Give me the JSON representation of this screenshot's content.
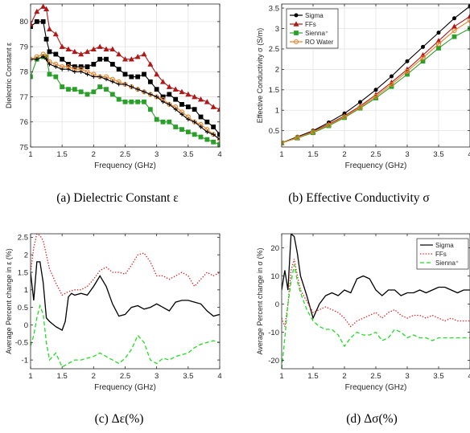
{
  "captions": [
    "(a) Dielectric Constant ε",
    "(b) Effective Conductivity σ",
    "(c) Δε(%)",
    "(d) Δσ(%)"
  ],
  "chart_data": [
    {
      "type": "line",
      "title": "",
      "xlabel": "Frequency (GHz)",
      "ylabel": "Dielectric Constant ε",
      "xlim": [
        1,
        4
      ],
      "ylim": [
        75,
        80.7
      ],
      "xticks": [
        1,
        1.5,
        2,
        2.5,
        3,
        3.5,
        4
      ],
      "xtick_labels": [
        "1",
        "1.5",
        "2",
        "2.5",
        "3",
        "3.5",
        "4"
      ],
      "yticks": [
        75,
        76,
        77,
        78,
        79,
        80
      ],
      "ytick_labels": [
        "75",
        "76",
        "77",
        "78",
        "79",
        "80"
      ],
      "grid": true,
      "legend": false,
      "series": [
        {
          "color": "#000000",
          "marker": "square",
          "x": [
            1.0,
            1.1,
            1.2,
            1.25,
            1.3,
            1.4,
            1.5,
            1.6,
            1.7,
            1.8,
            1.9,
            2.0,
            2.1,
            2.2,
            2.3,
            2.4,
            2.5,
            2.6,
            2.7,
            2.8,
            2.9,
            3.0,
            3.1,
            3.2,
            3.3,
            3.4,
            3.5,
            3.6,
            3.7,
            3.8,
            3.9,
            4.0
          ],
          "y": [
            79.8,
            80.0,
            80.0,
            79.3,
            78.8,
            78.7,
            78.5,
            78.3,
            78.2,
            78.2,
            78.2,
            78.3,
            78.5,
            78.5,
            78.3,
            78.1,
            77.9,
            77.8,
            77.8,
            77.9,
            77.6,
            77.3,
            77.0,
            77.1,
            76.9,
            76.7,
            76.6,
            76.5,
            76.2,
            76.0,
            75.8,
            75.5
          ]
        },
        {
          "color": "#b01818",
          "marker": "triangle",
          "x": [
            1.0,
            1.1,
            1.2,
            1.25,
            1.3,
            1.4,
            1.5,
            1.6,
            1.7,
            1.8,
            1.9,
            2.0,
            2.1,
            2.2,
            2.3,
            2.4,
            2.5,
            2.6,
            2.7,
            2.8,
            2.9,
            3.0,
            3.1,
            3.2,
            3.3,
            3.4,
            3.5,
            3.6,
            3.7,
            3.8,
            3.9,
            4.0
          ],
          "y": [
            79.9,
            80.4,
            80.6,
            80.5,
            79.7,
            79.5,
            79.0,
            78.9,
            78.8,
            78.7,
            78.8,
            78.9,
            79.0,
            78.9,
            78.9,
            78.7,
            78.5,
            78.5,
            78.6,
            78.7,
            78.3,
            77.9,
            77.6,
            77.4,
            77.3,
            77.2,
            77.1,
            77.0,
            76.9,
            76.8,
            76.6,
            76.5
          ]
        },
        {
          "color": "#2aa02a",
          "marker": "square",
          "x": [
            1.0,
            1.1,
            1.2,
            1.25,
            1.3,
            1.4,
            1.5,
            1.6,
            1.7,
            1.8,
            1.9,
            2.0,
            2.1,
            2.2,
            2.3,
            2.4,
            2.5,
            2.6,
            2.7,
            2.8,
            2.9,
            3.0,
            3.1,
            3.2,
            3.3,
            3.4,
            3.5,
            3.6,
            3.7,
            3.8,
            3.9,
            4.0
          ],
          "y": [
            77.8,
            78.5,
            78.6,
            78.6,
            77.9,
            77.8,
            77.4,
            77.3,
            77.3,
            77.2,
            77.1,
            77.2,
            77.4,
            77.3,
            77.1,
            76.9,
            76.8,
            76.8,
            76.8,
            76.8,
            76.5,
            76.1,
            76.0,
            76.0,
            75.8,
            75.7,
            75.6,
            75.5,
            75.4,
            75.3,
            75.2,
            75.1
          ]
        },
        {
          "color": "#e8832a",
          "marker": "ring",
          "x": [
            1.0,
            1.1,
            1.2,
            1.25,
            1.3,
            1.4,
            1.5,
            1.6,
            1.7,
            1.8,
            1.9,
            2.0,
            2.1,
            2.2,
            2.3,
            2.4,
            2.5,
            2.6,
            2.7,
            2.8,
            2.9,
            3.0,
            3.1,
            3.2,
            3.3,
            3.4,
            3.5,
            3.6,
            3.7,
            3.8,
            3.9,
            4.0
          ],
          "y": [
            78.5,
            78.6,
            78.7,
            78.6,
            78.4,
            78.3,
            78.2,
            78.2,
            78.1,
            78.1,
            78.0,
            77.9,
            77.8,
            77.8,
            77.7,
            77.6,
            77.5,
            77.4,
            77.3,
            77.2,
            77.1,
            77.0,
            76.9,
            76.7,
            76.6,
            76.4,
            76.2,
            76.0,
            75.9,
            75.7,
            75.5,
            75.3
          ]
        },
        {
          "color": "#000000",
          "marker": "plus",
          "x": [
            1.0,
            1.1,
            1.2,
            1.25,
            1.3,
            1.4,
            1.5,
            1.6,
            1.7,
            1.8,
            1.9,
            2.0,
            2.1,
            2.2,
            2.3,
            2.4,
            2.5,
            2.6,
            2.7,
            2.8,
            2.9,
            3.0,
            3.1,
            3.2,
            3.3,
            3.4,
            3.5,
            3.6,
            3.7,
            3.8,
            3.9,
            4.0
          ],
          "y": [
            78.5,
            78.5,
            78.6,
            78.5,
            78.3,
            78.2,
            78.1,
            78.1,
            78.0,
            78.0,
            77.9,
            77.8,
            77.8,
            77.7,
            77.6,
            77.5,
            77.5,
            77.4,
            77.3,
            77.2,
            77.1,
            77.0,
            76.8,
            76.7,
            76.5,
            76.3,
            76.1,
            76.0,
            75.8,
            75.6,
            75.5,
            75.3
          ]
        }
      ]
    },
    {
      "type": "line",
      "title": "",
      "xlabel": "Frequency (GHz)",
      "ylabel": "Effective Conductivity σ (S/m)",
      "xlim": [
        1,
        4
      ],
      "ylim": [
        0.1,
        3.6
      ],
      "xticks": [
        1,
        1.5,
        2,
        2.5,
        3,
        3.5,
        4
      ],
      "xtick_labels": [
        "1",
        "1.5",
        "2",
        "2.5",
        "3",
        "3.5",
        "4"
      ],
      "yticks": [
        0.5,
        1,
        1.5,
        2,
        2.5,
        3,
        3.5
      ],
      "ytick_labels": [
        "0.5",
        "1",
        "1.5",
        "2",
        "2.5",
        "3",
        "3.5"
      ],
      "grid": true,
      "legend": "top-left",
      "series": [
        {
          "name": "Sigma",
          "color": "#000000",
          "marker": "dot",
          "x": [
            1.0,
            1.25,
            1.5,
            1.75,
            2.0,
            2.25,
            2.5,
            2.75,
            3.0,
            3.25,
            3.5,
            3.75,
            4.0
          ],
          "y": [
            0.2,
            0.35,
            0.5,
            0.7,
            0.92,
            1.2,
            1.5,
            1.83,
            2.2,
            2.55,
            2.9,
            3.25,
            3.55
          ]
        },
        {
          "name": "FFs",
          "color": "#b01818",
          "marker": "triangle",
          "x": [
            1.0,
            1.25,
            1.5,
            1.75,
            2.0,
            2.25,
            2.5,
            2.75,
            3.0,
            3.25,
            3.5,
            3.75,
            4.0
          ],
          "y": [
            0.2,
            0.33,
            0.48,
            0.66,
            0.86,
            1.1,
            1.38,
            1.68,
            2.0,
            2.35,
            2.7,
            3.05,
            3.3
          ]
        },
        {
          "name": "Sienna⁺",
          "color": "#2aa02a",
          "marker": "square",
          "x": [
            1.0,
            1.25,
            1.5,
            1.75,
            2.0,
            2.25,
            2.5,
            2.75,
            3.0,
            3.25,
            3.5,
            3.75,
            4.0
          ],
          "y": [
            0.2,
            0.32,
            0.45,
            0.62,
            0.82,
            1.05,
            1.3,
            1.58,
            1.88,
            2.2,
            2.52,
            2.8,
            3.0
          ]
        },
        {
          "name": "RO Water",
          "color": "#e8832a",
          "marker": "ring",
          "x": [
            1.0,
            1.25,
            1.5,
            1.75,
            2.0,
            2.25,
            2.5,
            2.75,
            3.0,
            3.25,
            3.5,
            3.75,
            4.0
          ],
          "y": [
            0.2,
            0.33,
            0.47,
            0.64,
            0.84,
            1.07,
            1.34,
            1.63,
            1.95,
            2.28,
            2.62,
            2.95,
            3.2
          ]
        }
      ]
    },
    {
      "type": "line",
      "title": "",
      "xlabel": "Frequency (GHz)",
      "ylabel": "Average Percent change in ε (%)",
      "xlim": [
        1,
        4
      ],
      "ylim": [
        -1.25,
        2.6
      ],
      "xticks": [
        1,
        1.5,
        2,
        2.5,
        3,
        3.5,
        4
      ],
      "xtick_labels": [
        "1",
        "1.5",
        "2",
        "2.5",
        "3",
        "3.5",
        "4"
      ],
      "yticks": [
        -1,
        -0.5,
        0,
        0.5,
        1,
        1.5,
        2,
        2.5
      ],
      "ytick_labels": [
        "-1",
        "-0.5",
        "0",
        "0.5",
        "1",
        "1.5",
        "2",
        "2.5"
      ],
      "grid": false,
      "legend": false,
      "series": [
        {
          "color": "#000000",
          "style": "solid",
          "x": [
            1.0,
            1.05,
            1.1,
            1.15,
            1.2,
            1.25,
            1.3,
            1.4,
            1.5,
            1.55,
            1.6,
            1.65,
            1.7,
            1.8,
            1.9,
            2.0,
            2.1,
            2.2,
            2.3,
            2.4,
            2.5,
            2.6,
            2.7,
            2.8,
            2.9,
            3.0,
            3.1,
            3.2,
            3.3,
            3.4,
            3.5,
            3.6,
            3.7,
            3.8,
            3.9,
            4.0
          ],
          "y": [
            1.5,
            0.7,
            1.8,
            1.8,
            1.2,
            0.2,
            0.1,
            -0.05,
            -0.15,
            0.1,
            0.8,
            0.9,
            0.85,
            0.9,
            0.85,
            1.1,
            1.4,
            1.1,
            0.6,
            0.25,
            0.3,
            0.5,
            0.55,
            0.45,
            0.5,
            0.6,
            0.5,
            0.4,
            0.65,
            0.7,
            0.7,
            0.65,
            0.6,
            0.4,
            0.25,
            0.3
          ]
        },
        {
          "color": "#e02020",
          "style": "dotted",
          "x": [
            1.0,
            1.05,
            1.1,
            1.15,
            1.2,
            1.25,
            1.3,
            1.4,
            1.5,
            1.6,
            1.7,
            1.8,
            1.9,
            2.0,
            2.1,
            2.2,
            2.3,
            2.4,
            2.5,
            2.6,
            2.7,
            2.8,
            2.9,
            3.0,
            3.1,
            3.2,
            3.3,
            3.4,
            3.5,
            3.6,
            3.7,
            3.8,
            3.9,
            4.0
          ],
          "y": [
            1.5,
            2.2,
            2.6,
            2.55,
            2.4,
            2.0,
            1.6,
            1.2,
            0.85,
            0.95,
            1.0,
            1.0,
            1.1,
            1.3,
            1.55,
            1.65,
            1.5,
            1.5,
            1.45,
            1.7,
            2.0,
            2.05,
            1.8,
            1.4,
            1.4,
            1.3,
            1.4,
            1.5,
            1.4,
            1.1,
            1.3,
            1.5,
            1.4,
            1.5
          ]
        },
        {
          "color": "#22dd22",
          "style": "dashed",
          "x": [
            1.0,
            1.05,
            1.1,
            1.15,
            1.2,
            1.25,
            1.3,
            1.4,
            1.5,
            1.6,
            1.7,
            1.8,
            1.9,
            2.0,
            2.1,
            2.2,
            2.3,
            2.4,
            2.5,
            2.6,
            2.7,
            2.8,
            2.9,
            3.0,
            3.1,
            3.2,
            3.3,
            3.4,
            3.5,
            3.6,
            3.7,
            3.8,
            3.9,
            4.0
          ],
          "y": [
            -0.6,
            -0.3,
            0.2,
            0.55,
            0.3,
            -0.5,
            -1.0,
            -0.8,
            -1.2,
            -1.1,
            -1.0,
            -1.0,
            -0.95,
            -0.9,
            -0.8,
            -0.9,
            -1.0,
            -1.1,
            -0.95,
            -0.7,
            -0.3,
            -0.5,
            -1.0,
            -1.1,
            -0.95,
            -1.0,
            -0.9,
            -0.85,
            -0.8,
            -0.65,
            -0.55,
            -0.5,
            -0.45,
            -0.5
          ]
        }
      ]
    },
    {
      "type": "line",
      "title": "",
      "xlabel": "Frequency (GHz)",
      "ylabel": "Average Percent change in σ (%)",
      "xlim": [
        1,
        4
      ],
      "ylim": [
        -23,
        25
      ],
      "xticks": [
        1,
        1.5,
        2,
        2.5,
        3,
        3.5,
        4
      ],
      "xtick_labels": [
        "1",
        "1.5",
        "2",
        "2.5",
        "3",
        "3.5",
        "4"
      ],
      "yticks": [
        -20,
        -10,
        0,
        10,
        20
      ],
      "ytick_labels": [
        "-20",
        "-10",
        "0",
        "10",
        "20"
      ],
      "grid": false,
      "legend": "top-right",
      "series": [
        {
          "name": "Sigma",
          "color": "#000000",
          "style": "solid",
          "x": [
            1.0,
            1.05,
            1.1,
            1.15,
            1.2,
            1.25,
            1.3,
            1.4,
            1.5,
            1.6,
            1.7,
            1.8,
            1.9,
            2.0,
            2.1,
            2.2,
            2.3,
            2.4,
            2.5,
            2.6,
            2.7,
            2.8,
            2.9,
            3.0,
            3.1,
            3.2,
            3.3,
            3.4,
            3.5,
            3.6,
            3.7,
            3.8,
            3.9,
            4.0
          ],
          "y": [
            5,
            12,
            5,
            25,
            24,
            18,
            10,
            3,
            -5,
            0,
            3,
            4,
            3,
            5,
            4,
            9,
            10,
            9,
            5,
            3,
            5,
            5,
            3,
            4,
            4,
            5,
            4,
            5,
            6,
            6,
            5,
            4,
            5,
            5
          ]
        },
        {
          "name": "FFs",
          "color": "#e02020",
          "style": "dotted",
          "x": [
            1.0,
            1.05,
            1.1,
            1.15,
            1.2,
            1.25,
            1.3,
            1.4,
            1.5,
            1.6,
            1.7,
            1.8,
            1.9,
            2.0,
            2.1,
            2.2,
            2.3,
            2.4,
            2.5,
            2.6,
            2.7,
            2.8,
            2.9,
            3.0,
            3.1,
            3.2,
            3.3,
            3.4,
            3.5,
            3.6,
            3.7,
            3.8,
            3.9,
            4.0
          ],
          "y": [
            -5,
            -8,
            0,
            12,
            16,
            10,
            5,
            1,
            -3,
            -2,
            -1,
            -2,
            -3,
            -5,
            -8,
            -6,
            -5,
            -4,
            -3,
            -5,
            -3,
            -2,
            -4,
            -5,
            -4,
            -4,
            -5,
            -4,
            -5,
            -6,
            -5,
            -6,
            -6,
            -6
          ]
        },
        {
          "name": "Sienna⁺",
          "color": "#22dd22",
          "style": "dashed",
          "x": [
            1.0,
            1.05,
            1.1,
            1.15,
            1.2,
            1.25,
            1.3,
            1.4,
            1.5,
            1.6,
            1.7,
            1.8,
            1.9,
            2.0,
            2.1,
            2.2,
            2.3,
            2.4,
            2.5,
            2.6,
            2.7,
            2.8,
            2.9,
            3.0,
            3.1,
            3.2,
            3.3,
            3.4,
            3.5,
            3.6,
            3.7,
            3.8,
            3.9,
            4.0
          ],
          "y": [
            -23,
            -12,
            0,
            8,
            14,
            8,
            4,
            -2,
            -6,
            -8,
            -9,
            -9,
            -11,
            -15,
            -12,
            -10,
            -11,
            -11,
            -10,
            -13,
            -12,
            -9,
            -10,
            -12,
            -11,
            -12,
            -12,
            -13,
            -12,
            -12,
            -12,
            -12,
            -12,
            -12
          ]
        }
      ]
    }
  ]
}
